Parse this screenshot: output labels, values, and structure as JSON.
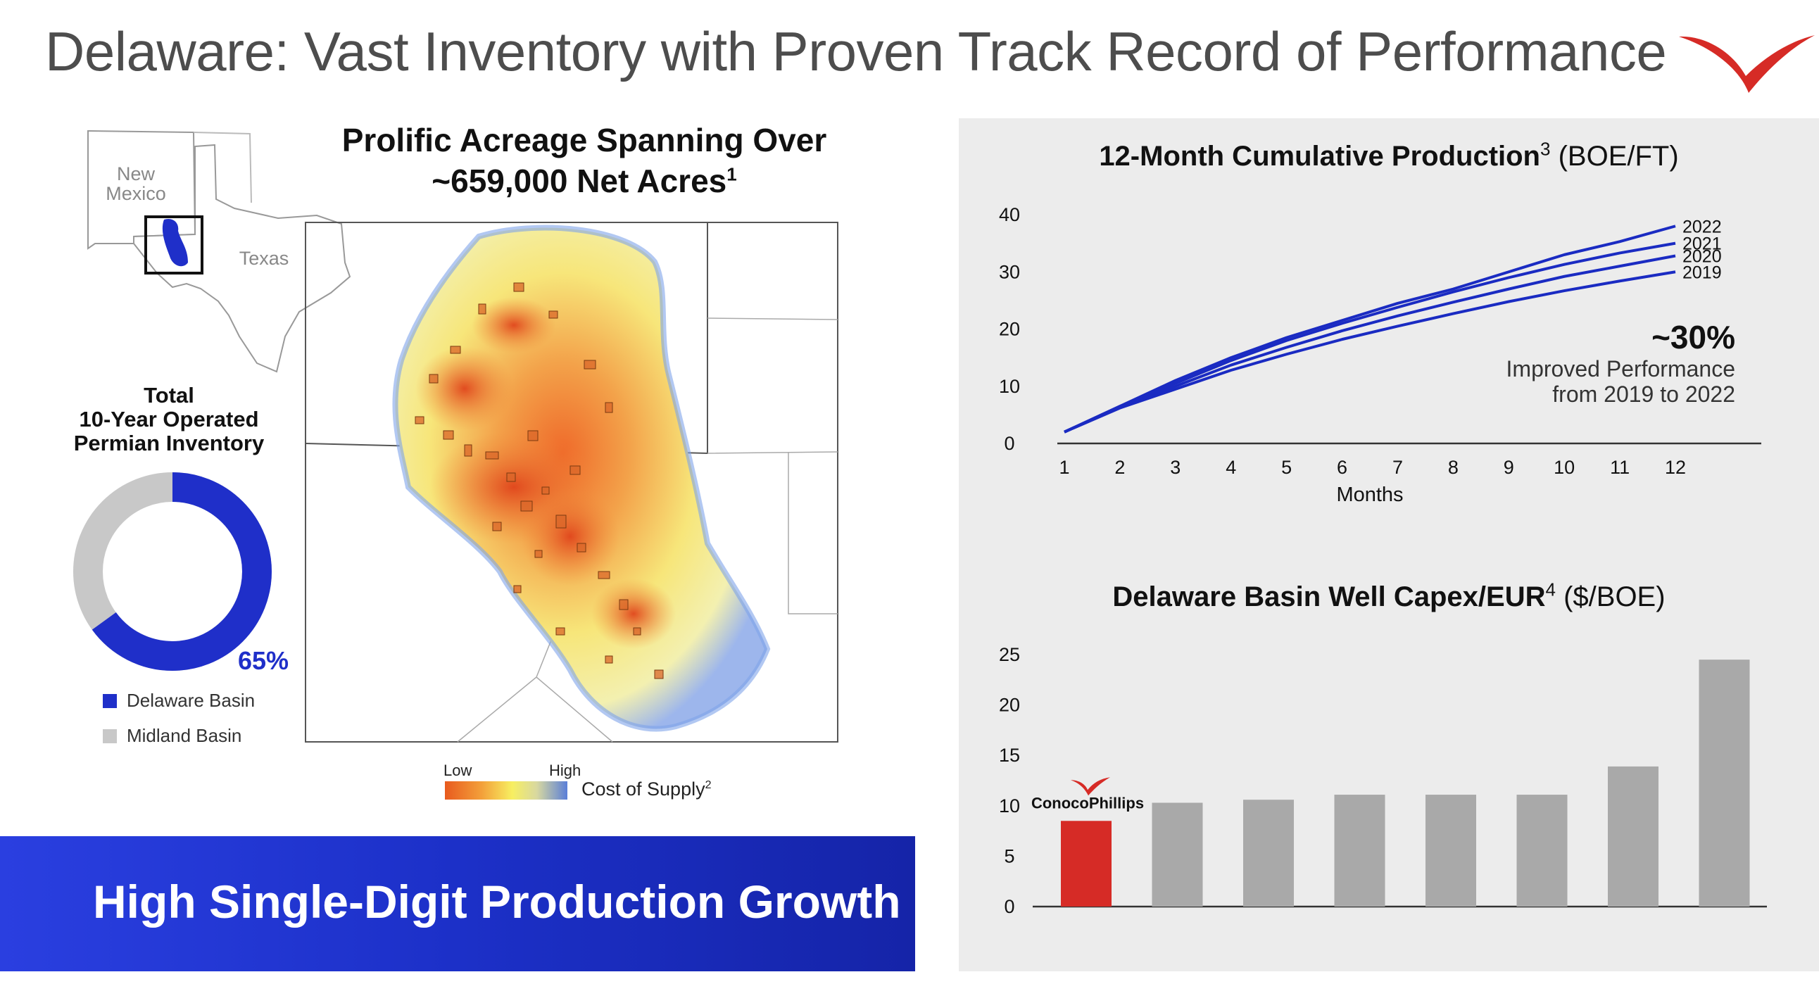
{
  "slide": {
    "title": "Delaware: Vast Inventory with Proven Track Record of Performance",
    "brand_color": "#d62b26"
  },
  "map": {
    "heading_line1": "Prolific Acreage Spanning Over",
    "heading_line2": "~659,000 Net Acres",
    "heading_sup": "1",
    "inset_labels": {
      "new_mexico_1": "New",
      "new_mexico_2": "Mexico",
      "texas": "Texas"
    },
    "scale_low": "Low",
    "scale_high": "High",
    "scale_label": "Cost of Supply",
    "scale_sup": "2"
  },
  "inventory": {
    "title_line1": "Total",
    "title_line2": "10-Year Operated",
    "title_line3": "Permian Inventory",
    "delaware_pct": 65,
    "pct_label": "65%",
    "legend": [
      {
        "label": "Delaware Basin",
        "color": "#1f2fc9"
      },
      {
        "label": "Midland Basin",
        "color": "#c8c8c8"
      }
    ]
  },
  "banner": {
    "text": "High Single-Digit Production Growth"
  },
  "chart_data": [
    {
      "type": "line",
      "title": "12-Month Cumulative Production",
      "title_sup": "3",
      "title_units": "(BOE/FT)",
      "xlabel": "Months",
      "ylabel": "",
      "x": [
        1,
        2,
        3,
        4,
        5,
        6,
        7,
        8,
        9,
        10,
        11,
        12
      ],
      "ylim": [
        0,
        40
      ],
      "yticks": [
        0,
        10,
        20,
        30,
        40
      ],
      "grid": false,
      "series_color": "#1a2bc2",
      "series": [
        {
          "name": "2022",
          "values": [
            2,
            6.5,
            11,
            15,
            18.5,
            21.5,
            24.5,
            27,
            30,
            33,
            35.3,
            38
          ]
        },
        {
          "name": "2021",
          "values": [
            2,
            6.5,
            10.5,
            14.5,
            18,
            21,
            23.8,
            26.5,
            29,
            31.3,
            33.3,
            35
          ]
        },
        {
          "name": "2020",
          "values": [
            2,
            6.3,
            10,
            13.7,
            16.8,
            19.7,
            22.3,
            24.7,
            27,
            29.2,
            31,
            32.8
          ]
        },
        {
          "name": "2019",
          "values": [
            2,
            6.2,
            9.5,
            12.8,
            15.6,
            18.2,
            20.5,
            22.7,
            24.8,
            26.7,
            28.4,
            30
          ]
        }
      ],
      "annotation_big": "~30%",
      "annotation_line1": "Improved Performance",
      "annotation_line2": "from 2019 to 2022"
    },
    {
      "type": "bar",
      "title": "Delaware Basin Well Capex/EUR",
      "title_sup": "4",
      "title_units": "($/BOE)",
      "xlabel": "",
      "ylabel": "",
      "ylim": [
        0,
        25
      ],
      "yticks": [
        0,
        5,
        10,
        15,
        20,
        25
      ],
      "categories": [
        "ConocoPhillips",
        "",
        "",
        "",
        "",
        "",
        "",
        ""
      ],
      "values": [
        8.5,
        10.3,
        10.6,
        11.1,
        11.1,
        11.1,
        13.9,
        24.5
      ],
      "bar_colors": [
        "#d62b26",
        "#a9a9a9",
        "#a9a9a9",
        "#a9a9a9",
        "#a9a9a9",
        "#a9a9a9",
        "#a9a9a9",
        "#a9a9a9"
      ],
      "highlight_label": "ConocoPhillips"
    }
  ]
}
